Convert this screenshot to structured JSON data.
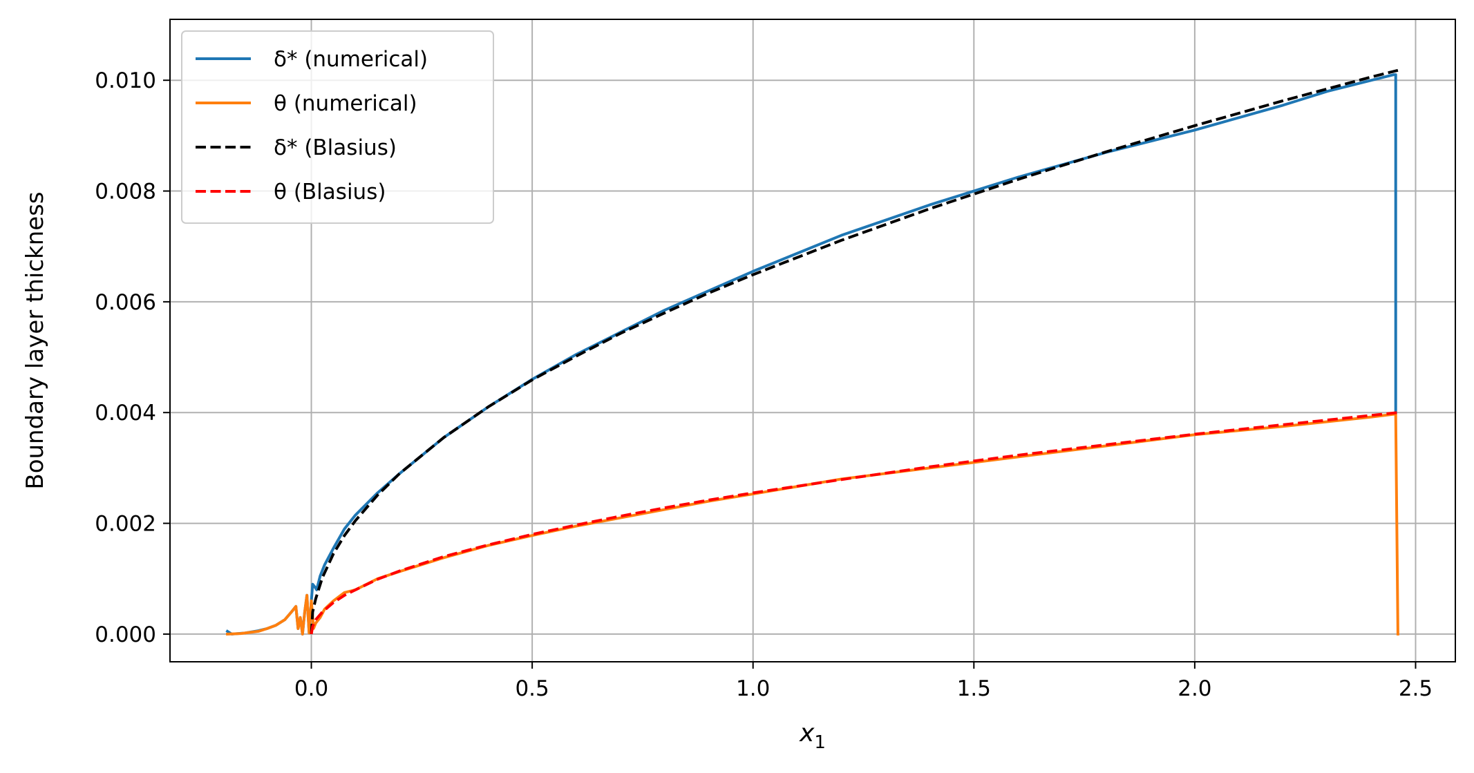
{
  "chart_data": {
    "type": "line",
    "title": "",
    "xlabel": "x",
    "xlabel_sub": "1",
    "ylabel": "Boundary layer thickness",
    "xlim": [
      -0.32,
      2.59
    ],
    "ylim": [
      -0.0005,
      0.0111
    ],
    "xticks": [
      0.0,
      0.5,
      1.0,
      1.5,
      2.0,
      2.5
    ],
    "xtick_labels": [
      "0.0",
      "0.5",
      "1.0",
      "1.5",
      "2.0",
      "2.5"
    ],
    "yticks": [
      0.0,
      0.002,
      0.004,
      0.006,
      0.008,
      0.01
    ],
    "ytick_labels": [
      "0.000",
      "0.002",
      "0.004",
      "0.006",
      "0.008",
      "0.010"
    ],
    "grid": true,
    "legend_position": "upper-left",
    "series": [
      {
        "name": "δ* (numerical)",
        "style": "solid",
        "color": "#1f77b4",
        "points": [
          [
            -0.19,
            5e-05
          ],
          [
            -0.18,
            0.0
          ],
          [
            -0.15,
            2e-05
          ],
          [
            -0.12,
            6e-05
          ],
          [
            -0.1,
            0.0001
          ],
          [
            -0.08,
            0.00016
          ],
          [
            -0.06,
            0.00026
          ],
          [
            -0.045,
            0.0004
          ],
          [
            -0.035,
            0.0005
          ],
          [
            -0.03,
            0.0001
          ],
          [
            -0.025,
            0.0003
          ],
          [
            -0.02,
            0.0
          ],
          [
            -0.015,
            0.0004
          ],
          [
            -0.01,
            0.0007
          ],
          [
            -0.005,
            2e-05
          ],
          [
            0.0,
            0.0006
          ],
          [
            0.003,
            0.0009
          ],
          [
            0.008,
            0.00085
          ],
          [
            0.012,
            0.0008
          ],
          [
            0.02,
            0.00105
          ],
          [
            0.03,
            0.00125
          ],
          [
            0.05,
            0.00155
          ],
          [
            0.075,
            0.0019
          ],
          [
            0.1,
            0.00215
          ],
          [
            0.15,
            0.00255
          ],
          [
            0.2,
            0.0029
          ],
          [
            0.3,
            0.00355
          ],
          [
            0.4,
            0.0041
          ],
          [
            0.5,
            0.0046
          ],
          [
            0.6,
            0.00505
          ],
          [
            0.7,
            0.00545
          ],
          [
            0.8,
            0.00585
          ],
          [
            0.9,
            0.0062
          ],
          [
            1.0,
            0.00655
          ],
          [
            1.2,
            0.0072
          ],
          [
            1.4,
            0.00775
          ],
          [
            1.6,
            0.00825
          ],
          [
            1.8,
            0.0087
          ],
          [
            2.0,
            0.0091
          ],
          [
            2.2,
            0.00955
          ],
          [
            2.3,
            0.0098
          ],
          [
            2.4,
            0.01
          ],
          [
            2.45,
            0.0101
          ],
          [
            2.455,
            0.0101
          ],
          [
            2.455,
            0.004
          ]
        ]
      },
      {
        "name": "θ (numerical)",
        "style": "solid",
        "color": "#ff7f0e",
        "points": [
          [
            -0.19,
            0.0
          ],
          [
            -0.16,
            1e-05
          ],
          [
            -0.12,
            5e-05
          ],
          [
            -0.1,
            0.0001
          ],
          [
            -0.08,
            0.00016
          ],
          [
            -0.06,
            0.00026
          ],
          [
            -0.045,
            0.0004
          ],
          [
            -0.035,
            0.0005
          ],
          [
            -0.03,
            0.0001
          ],
          [
            -0.025,
            0.0003
          ],
          [
            -0.02,
            0.0
          ],
          [
            -0.015,
            0.0004
          ],
          [
            -0.01,
            0.0007
          ],
          [
            -0.005,
            2e-05
          ],
          [
            0.0,
            0.0006
          ],
          [
            0.005,
            0.0001
          ],
          [
            0.01,
            0.0002
          ],
          [
            0.02,
            0.0003
          ],
          [
            0.03,
            0.00045
          ],
          [
            0.05,
            0.0006
          ],
          [
            0.075,
            0.00075
          ],
          [
            0.1,
            0.0008
          ],
          [
            0.15,
            0.001
          ],
          [
            0.2,
            0.00113
          ],
          [
            0.3,
            0.00138
          ],
          [
            0.4,
            0.0016
          ],
          [
            0.5,
            0.00178
          ],
          [
            0.6,
            0.00195
          ],
          [
            0.7,
            0.0021
          ],
          [
            0.8,
            0.00225
          ],
          [
            0.9,
            0.0024
          ],
          [
            1.0,
            0.00253
          ],
          [
            1.2,
            0.0028
          ],
          [
            1.4,
            0.003
          ],
          [
            1.6,
            0.0032
          ],
          [
            1.8,
            0.0034
          ],
          [
            2.0,
            0.0036
          ],
          [
            2.2,
            0.00375
          ],
          [
            2.4,
            0.00392
          ],
          [
            2.45,
            0.00397
          ],
          [
            2.455,
            0.00397
          ],
          [
            2.46,
            0.0
          ]
        ]
      },
      {
        "name": "δ* (Blasius)",
        "style": "dashed",
        "color": "#000000",
        "points": [
          [
            0.0,
            0.0
          ],
          [
            0.003,
            0.0004
          ],
          [
            0.01,
            0.00064
          ],
          [
            0.025,
            0.00102
          ],
          [
            0.05,
            0.00145
          ],
          [
            0.075,
            0.00178
          ],
          [
            0.1,
            0.00205
          ],
          [
            0.15,
            0.00251
          ],
          [
            0.2,
            0.0029
          ],
          [
            0.3,
            0.00355
          ],
          [
            0.4,
            0.0041
          ],
          [
            0.5,
            0.00459
          ],
          [
            0.6,
            0.00502
          ],
          [
            0.7,
            0.00543
          ],
          [
            0.8,
            0.0058
          ],
          [
            0.9,
            0.00616
          ],
          [
            1.0,
            0.00649
          ],
          [
            1.2,
            0.00711
          ],
          [
            1.4,
            0.00768
          ],
          [
            1.6,
            0.00821
          ],
          [
            1.8,
            0.00871
          ],
          [
            2.0,
            0.00918
          ],
          [
            2.2,
            0.00963
          ],
          [
            2.4,
            0.01006
          ],
          [
            2.46,
            0.01018
          ]
        ]
      },
      {
        "name": "θ (Blasius)",
        "style": "dashed",
        "color": "#ff0000",
        "points": [
          [
            0.0,
            0.0
          ],
          [
            0.003,
            0.00014
          ],
          [
            0.01,
            0.00026
          ],
          [
            0.025,
            0.0004
          ],
          [
            0.05,
            0.00057
          ],
          [
            0.075,
            0.0007
          ],
          [
            0.1,
            0.0008
          ],
          [
            0.15,
            0.00099
          ],
          [
            0.2,
            0.00114
          ],
          [
            0.3,
            0.0014
          ],
          [
            0.4,
            0.00161
          ],
          [
            0.5,
            0.0018
          ],
          [
            0.6,
            0.00197
          ],
          [
            0.7,
            0.00213
          ],
          [
            0.8,
            0.00228
          ],
          [
            0.9,
            0.00242
          ],
          [
            1.0,
            0.00255
          ],
          [
            1.2,
            0.00279
          ],
          [
            1.4,
            0.00302
          ],
          [
            1.6,
            0.00323
          ],
          [
            1.8,
            0.00342
          ],
          [
            2.0,
            0.00361
          ],
          [
            2.2,
            0.00378
          ],
          [
            2.4,
            0.00395
          ],
          [
            2.46,
            0.004
          ]
        ]
      }
    ]
  }
}
